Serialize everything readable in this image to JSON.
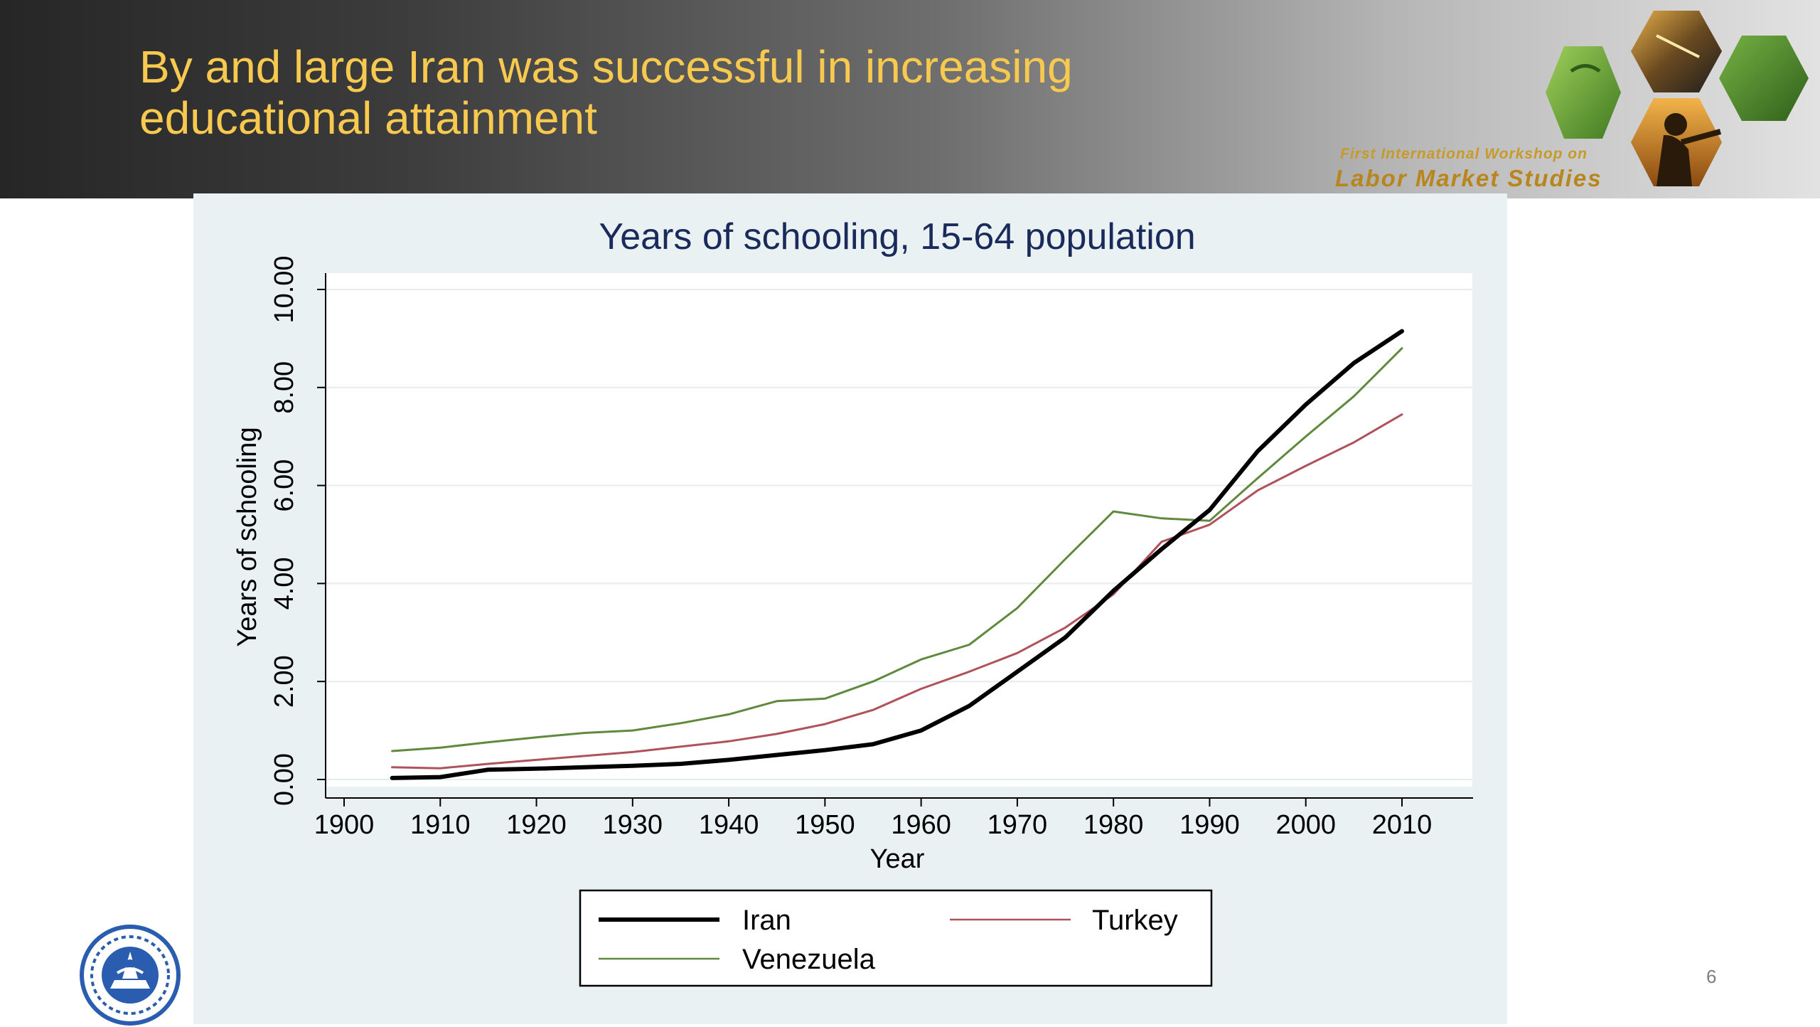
{
  "slide": {
    "title_lines": [
      "By and large Iran was successful in increasing",
      "educational attainment"
    ],
    "page_number": "6",
    "workshop": {
      "line1": "First International Workshop on",
      "line2": "Labor Market Studies"
    }
  },
  "colors": {
    "title": "#f7c94e",
    "chart_title": "#1a2a5a",
    "panel": "#eaf1f3",
    "iran": "#000000",
    "turkey": "#b0525c",
    "venezuela": "#5f8a3e"
  },
  "icons": {
    "workshop_logo": "hexagon-photo-collage-icon",
    "university_logo": "university-seal-icon"
  },
  "chart_data": {
    "type": "line",
    "title": "Years of schooling, 15-64 population",
    "xlabel": "Year",
    "ylabel": "Years of schooling",
    "xlim": [
      1900,
      2010
    ],
    "ylim": [
      0,
      10
    ],
    "xticks": [
      "1900",
      "1910",
      "1920",
      "1930",
      "1940",
      "1950",
      "1960",
      "1970",
      "1980",
      "1990",
      "2000",
      "2010"
    ],
    "yticks": [
      "0.00",
      "2.00",
      "4.00",
      "6.00",
      "8.00",
      "10.00"
    ],
    "grid": true,
    "legend_position": "bottom",
    "x": [
      1905,
      1910,
      1915,
      1920,
      1925,
      1930,
      1935,
      1940,
      1945,
      1950,
      1955,
      1960,
      1965,
      1970,
      1975,
      1980,
      1985,
      1990,
      1995,
      2000,
      2005,
      2010
    ],
    "series": [
      {
        "name": "Iran",
        "values": [
          0.03,
          0.05,
          0.2,
          0.22,
          0.25,
          0.28,
          0.32,
          0.4,
          0.5,
          0.6,
          0.72,
          1.0,
          1.5,
          2.2,
          2.9,
          3.85,
          4.7,
          5.5,
          6.7,
          7.65,
          8.5,
          9.15
        ]
      },
      {
        "name": "Turkey",
        "values": [
          0.25,
          0.23,
          0.32,
          0.4,
          0.48,
          0.56,
          0.67,
          0.78,
          0.93,
          1.13,
          1.42,
          1.85,
          2.2,
          2.58,
          3.1,
          3.78,
          4.85,
          5.2,
          5.9,
          6.4,
          6.88,
          7.45
        ]
      },
      {
        "name": "Venezuela",
        "values": [
          0.58,
          0.65,
          0.76,
          0.86,
          0.95,
          1.0,
          1.15,
          1.33,
          1.6,
          1.65,
          2.0,
          2.45,
          2.75,
          3.5,
          4.5,
          5.47,
          5.33,
          5.28,
          6.15,
          7.0,
          7.82,
          8.8
        ]
      }
    ]
  }
}
